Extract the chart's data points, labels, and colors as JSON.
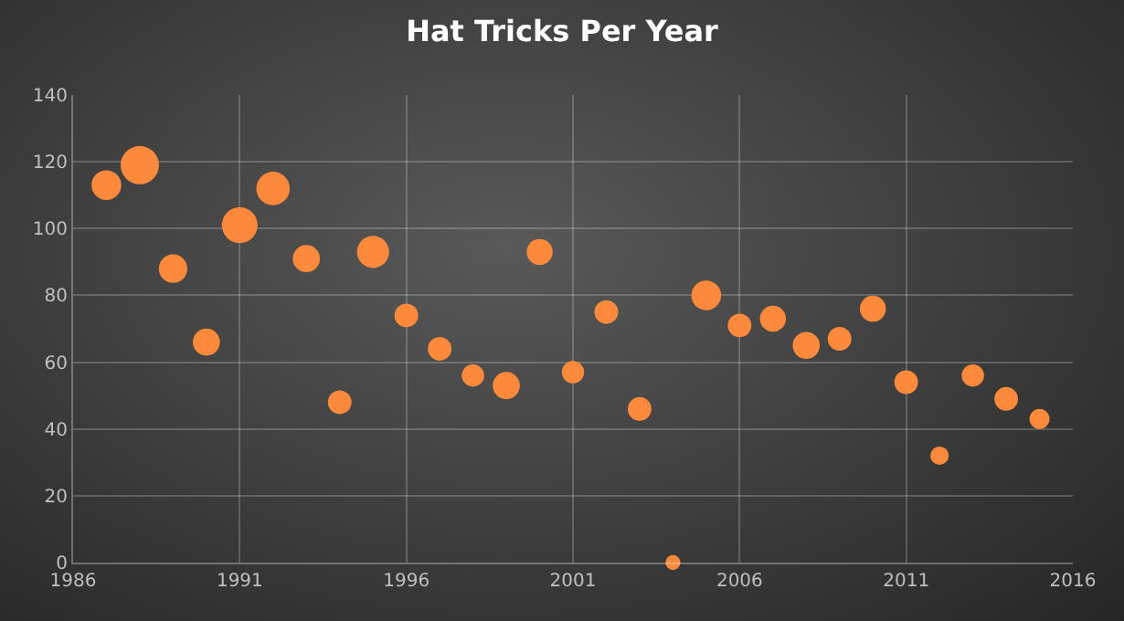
{
  "chart_data": {
    "type": "bubble",
    "title": "Hat Tricks Per Year",
    "x": [
      1987,
      1988,
      1989,
      1990,
      1991,
      1992,
      1993,
      1994,
      1995,
      1996,
      1997,
      1998,
      1999,
      2000,
      2001,
      2002,
      2003,
      2004,
      2005,
      2006,
      2007,
      2008,
      2009,
      2010,
      2011,
      2012,
      2013,
      2014,
      2015
    ],
    "values": [
      113,
      119,
      88,
      66,
      101,
      112,
      91,
      48,
      93,
      74,
      64,
      56,
      53,
      93,
      57,
      75,
      46,
      0,
      80,
      71,
      73,
      65,
      67,
      76,
      54,
      32,
      56,
      49,
      43
    ],
    "sizes": [
      0.6,
      1,
      0.55,
      0.5,
      0.87,
      0.76,
      0.5,
      0.38,
      0.7,
      0.38,
      0.38,
      0.34,
      0.5,
      0.46,
      0.34,
      0.38,
      0.38,
      0.15,
      0.6,
      0.38,
      0.46,
      0.5,
      0.38,
      0.46,
      0.38,
      0.23,
      0.34,
      0.38,
      0.27
    ],
    "color": "#fd8a3b",
    "xlim": [
      1986,
      2016
    ],
    "xticks": [
      1986,
      1991,
      1996,
      2001,
      2006,
      2011,
      2016
    ],
    "ylim": [
      0,
      140
    ],
    "yticks": [
      0,
      20,
      40,
      60,
      80,
      100,
      120,
      140
    ],
    "grid": true
  }
}
